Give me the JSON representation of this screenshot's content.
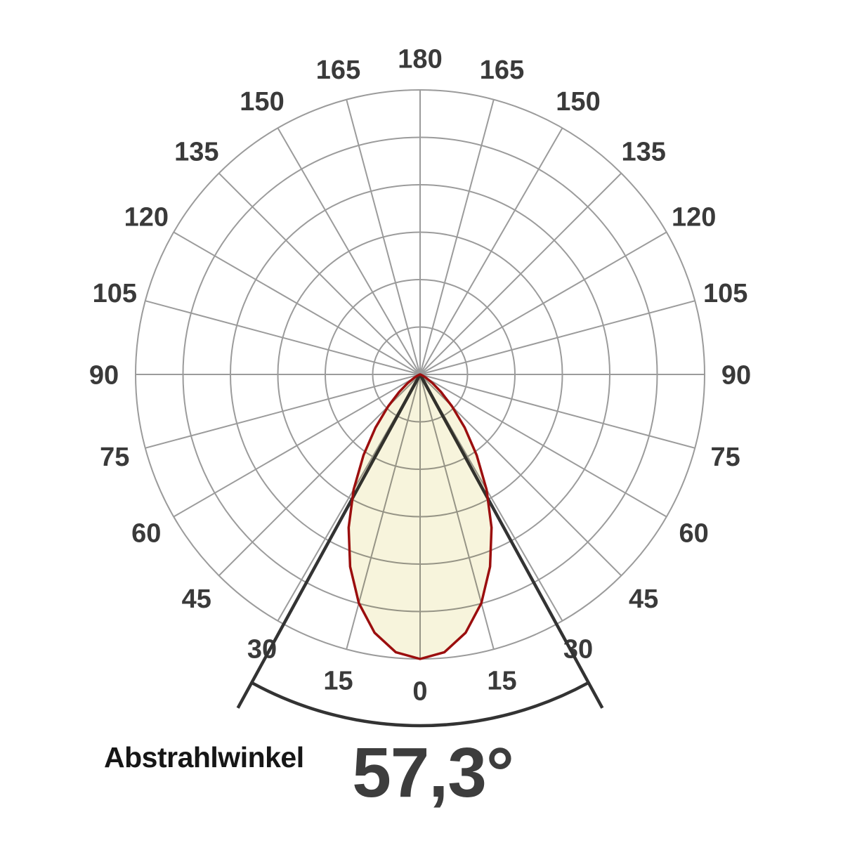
{
  "page": {
    "background": "#ffffff"
  },
  "chart_data": {
    "type": "line",
    "coordinate_system": "polar",
    "orientation": "0-degrees-at-bottom, 180-degrees-at-top",
    "angle_tick_labels": [
      0,
      15,
      30,
      45,
      60,
      75,
      90,
      105,
      120,
      135,
      150,
      165,
      180
    ],
    "angle_ticks_mirrored_both_sides": true,
    "angle_step_deg": 15,
    "radial_rings": 6,
    "radial_tick_labels": [],
    "grid": true,
    "legend": "none",
    "series": [
      {
        "name": "relative-luminous-intensity",
        "angles_deg": [
          0,
          5,
          10,
          15,
          20,
          25,
          30,
          35,
          40,
          45,
          50,
          55,
          60,
          65,
          70,
          75,
          80,
          85,
          90
        ],
        "relative_intensity": [
          1.0,
          0.98,
          0.922,
          0.832,
          0.719,
          0.594,
          0.467,
          0.347,
          0.244,
          0.159,
          0.096,
          0.053,
          0.025,
          0.01,
          0.003,
          0.001,
          0.0003,
          0.0001,
          0
        ]
      }
    ],
    "annotations": {
      "beam_angle_deg": 57.3,
      "half_angle_deg": 28.65,
      "beam_angle_display": "57,3°"
    },
    "colors": {
      "grid": "#9b9b9b",
      "lobe_fill": "#f7f4dc",
      "lobe_outline": "#9b0e0e",
      "beam_marker": "#333333",
      "tick_label": "#3a3a3a",
      "footer_label": "#161616",
      "footer_value": "#3d3d3d"
    }
  },
  "footer": {
    "label": "Abstrahlwinkel",
    "value": "57,3°"
  }
}
